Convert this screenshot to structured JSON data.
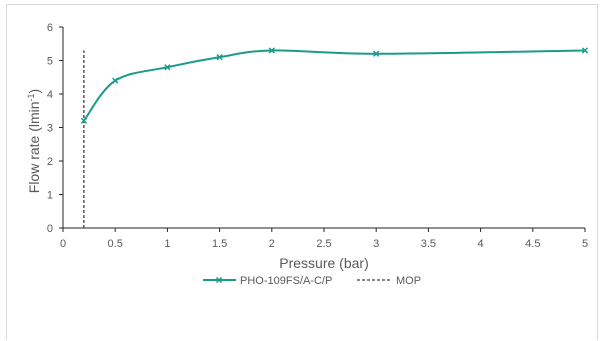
{
  "chart_data": {
    "type": "line",
    "title": "",
    "xlabel": "Pressure (bar)",
    "ylabel_main": "Flow rate (lmin",
    "ylabel_sup": "-1",
    "ylabel_tail": ")",
    "xlim": [
      0,
      5
    ],
    "ylim": [
      0,
      6
    ],
    "xticks": [
      "0",
      "0.5",
      "1",
      "1.5",
      "2",
      "2.5",
      "3",
      "3.5",
      "4",
      "4.5",
      "5"
    ],
    "xtick_values": [
      0,
      0.5,
      1,
      1.5,
      2,
      2.5,
      3,
      3.5,
      4,
      4.5,
      5
    ],
    "yticks": [
      "0",
      "1",
      "2",
      "3",
      "4",
      "5",
      "6"
    ],
    "ytick_values": [
      0,
      1,
      2,
      3,
      4,
      5,
      6
    ],
    "grid": false,
    "legend_position": "bottom",
    "series": [
      {
        "name": "PHO-109FS/A-C/P",
        "color": "#1a9b8a",
        "marker": "x",
        "smooth": true,
        "x": [
          0.2,
          0.5,
          1,
          1.5,
          2,
          3,
          5
        ],
        "y": [
          3.2,
          4.4,
          4.8,
          5.1,
          5.3,
          5.2,
          5.3
        ]
      },
      {
        "name": "MOP",
        "color": "#404040",
        "style": "dashed",
        "x": [
          0.2,
          0.2
        ],
        "y": [
          0,
          5.3
        ]
      }
    ]
  }
}
